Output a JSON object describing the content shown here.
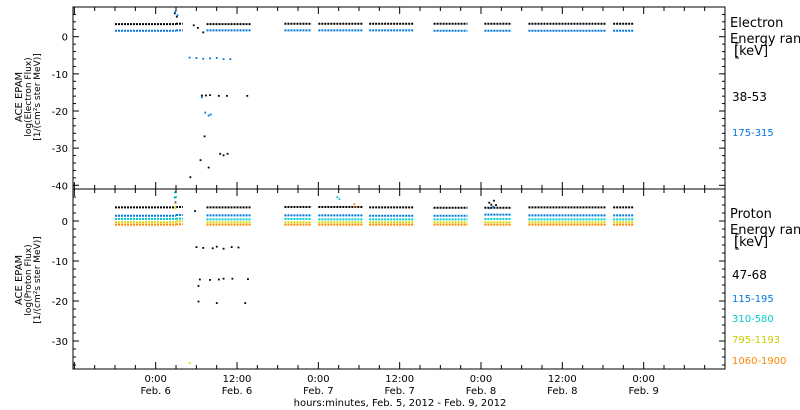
{
  "chart_data": [
    {
      "type": "scatter",
      "panel": "electron",
      "ylabel": [
        "ACE EPAM",
        "log(Electron Flux)",
        "[1/(cm²s ster MeV)]"
      ],
      "ylim": [
        -41,
        8
      ],
      "yticks": [
        0,
        -10,
        -20,
        -30,
        -40
      ],
      "legend_title": [
        "Electron",
        "Energy ranges",
        "[keV]"
      ],
      "series": [
        {
          "name": "38-53",
          "color": "#000000",
          "segments": [
            [
              -6.0,
              3.0,
              3.4
            ],
            [
              3.0,
              4.0,
              3.5
            ],
            [
              7.5,
              14.0,
              3.4
            ],
            [
              19.0,
              23.0,
              3.5
            ],
            [
              24.0,
              30.5,
              3.5
            ],
            [
              31.5,
              38.0,
              3.5
            ],
            [
              41.0,
              46.0,
              3.5
            ],
            [
              48.5,
              52.5,
              3.5
            ],
            [
              55.0,
              66.5,
              3.5
            ],
            [
              67.5,
              70.5,
              3.5
            ]
          ],
          "points": [
            [
              2.8,
              6.3
            ],
            [
              3.1,
              5.4
            ],
            [
              5.6,
              3.1
            ],
            [
              6.2,
              2.4
            ],
            [
              7.0,
              1.2
            ],
            [
              6.8,
              -15.8
            ],
            [
              7.4,
              -15.8
            ],
            [
              8.0,
              -15.7
            ],
            [
              9.3,
              -15.9
            ],
            [
              10.5,
              -15.9
            ],
            [
              13.5,
              -15.9
            ],
            [
              7.2,
              -26.8
            ],
            [
              6.6,
              -33.2
            ],
            [
              7.8,
              -35.2
            ],
            [
              5.1,
              -37.8
            ],
            [
              9.5,
              -31.5
            ],
            [
              10.0,
              -31.9
            ],
            [
              10.6,
              -31.5
            ]
          ]
        },
        {
          "name": "175-315",
          "color": "#0077dd",
          "segments": [
            [
              -6.0,
              3.0,
              1.6
            ],
            [
              3.0,
              4.0,
              1.7
            ],
            [
              7.5,
              14.0,
              1.7
            ],
            [
              19.0,
              23.0,
              1.7
            ],
            [
              24.0,
              30.5,
              1.7
            ],
            [
              31.5,
              38.0,
              1.7
            ],
            [
              41.0,
              46.0,
              1.6
            ],
            [
              48.5,
              52.5,
              1.6
            ],
            [
              55.0,
              66.5,
              1.6
            ],
            [
              67.5,
              70.5,
              1.6
            ]
          ],
          "points": [
            [
              2.9,
              6.8
            ],
            [
              3.2,
              5.8
            ],
            [
              5.0,
              -5.6
            ],
            [
              6.0,
              -5.7
            ],
            [
              7.0,
              -5.9
            ],
            [
              8.0,
              -5.8
            ],
            [
              9.0,
              -5.7
            ],
            [
              10.0,
              -6.0
            ],
            [
              11.0,
              -6.0
            ],
            [
              7.3,
              -20.4
            ],
            [
              7.8,
              -21.2
            ],
            [
              8.1,
              -20.9
            ],
            [
              6.8,
              -16.3
            ]
          ]
        }
      ]
    },
    {
      "type": "scatter",
      "panel": "proton",
      "ylabel": [
        "ACE EPAM",
        "log(Proton Flux)",
        "[1/(cm²s ster MeV)]"
      ],
      "ylim": [
        -37,
        8
      ],
      "yticks": [
        0,
        -10,
        -20,
        -30
      ],
      "legend_title": [
        "Proton",
        "Energy ranges",
        "[keV]"
      ],
      "series": [
        {
          "name": "47-68",
          "color": "#000000",
          "segments": [
            [
              -6.0,
              3.0,
              3.4
            ],
            [
              3.0,
              4.0,
              3.5
            ],
            [
              7.5,
              14.0,
              3.4
            ],
            [
              19.0,
              23.0,
              3.5
            ],
            [
              24.0,
              30.5,
              3.5
            ],
            [
              31.5,
              38.0,
              3.4
            ],
            [
              41.0,
              46.0,
              3.3
            ],
            [
              48.5,
              52.5,
              3.3
            ],
            [
              55.0,
              66.5,
              3.4
            ],
            [
              67.5,
              70.5,
              3.4
            ]
          ],
          "points": [
            [
              6.0,
              -6.5
            ],
            [
              7.0,
              -6.7
            ],
            [
              8.4,
              -6.8
            ],
            [
              9.0,
              -6.4
            ],
            [
              10.0,
              -6.9
            ],
            [
              11.2,
              -6.5
            ],
            [
              12.2,
              -6.6
            ],
            [
              6.5,
              -14.6
            ],
            [
              8.0,
              -14.7
            ],
            [
              9.3,
              -14.6
            ],
            [
              10.0,
              -14.4
            ],
            [
              11.3,
              -14.4
            ],
            [
              13.6,
              -14.5
            ],
            [
              6.3,
              -16.2
            ],
            [
              6.3,
              -20.1
            ],
            [
              9.0,
              -20.5
            ],
            [
              13.2,
              -20.5
            ],
            [
              5.8,
              2.5
            ],
            [
              49.2,
              4.6
            ],
            [
              49.5,
              4.1
            ],
            [
              49.9,
              5.1
            ],
            [
              50.2,
              4.0
            ]
          ]
        },
        {
          "name": "115-195",
          "color": "#0077dd",
          "segments": [
            [
              -6.0,
              3.0,
              1.3
            ],
            [
              3.0,
              4.0,
              1.5
            ],
            [
              7.5,
              14.0,
              1.4
            ],
            [
              19.0,
              23.0,
              1.4
            ],
            [
              24.0,
              30.5,
              1.4
            ],
            [
              31.5,
              38.0,
              1.3
            ],
            [
              41.0,
              46.0,
              1.3
            ],
            [
              48.5,
              52.5,
              1.6
            ],
            [
              55.0,
              66.5,
              1.4
            ],
            [
              67.5,
              70.5,
              1.4
            ]
          ],
          "points": [
            [
              2.8,
              5.9
            ],
            [
              2.9,
              4.8
            ],
            [
              49.3,
              3.2
            ],
            [
              49.8,
              3.6
            ]
          ]
        },
        {
          "name": "310-580",
          "color": "#00cccc",
          "segments": [
            [
              -6.0,
              3.0,
              0.5
            ],
            [
              3.0,
              4.0,
              0.6
            ],
            [
              7.5,
              14.0,
              0.4
            ],
            [
              19.0,
              23.0,
              0.5
            ],
            [
              24.0,
              30.5,
              0.4
            ],
            [
              31.5,
              38.0,
              0.4
            ],
            [
              41.0,
              46.0,
              0.4
            ],
            [
              48.5,
              52.5,
              0.5
            ],
            [
              55.0,
              66.5,
              0.4
            ],
            [
              67.5,
              70.5,
              0.4
            ]
          ],
          "points": [
            [
              2.8,
              7.2
            ],
            [
              3.0,
              6.0
            ],
            [
              26.8,
              6.0
            ],
            [
              27.1,
              5.5
            ]
          ]
        },
        {
          "name": "795-1193",
          "color": "#dddd00",
          "segments": [
            [
              -6.0,
              3.0,
              -0.3
            ],
            [
              3.0,
              4.0,
              -0.1
            ],
            [
              7.5,
              14.0,
              -0.3
            ],
            [
              19.0,
              23.0,
              -0.3
            ],
            [
              24.0,
              30.5,
              -0.3
            ],
            [
              31.5,
              38.0,
              -0.3
            ],
            [
              41.0,
              46.0,
              -0.3
            ],
            [
              48.5,
              52.5,
              -0.3
            ],
            [
              55.0,
              66.5,
              -0.3
            ],
            [
              67.5,
              70.5,
              -0.3
            ]
          ],
          "points": [
            [
              2.9,
              3.1
            ],
            [
              2.9,
              3.5
            ],
            [
              5.0,
              -35.5
            ]
          ]
        },
        {
          "name": "1060-1900",
          "color": "#ff8800",
          "segments": [
            [
              -6.0,
              3.0,
              -0.9
            ],
            [
              3.0,
              4.0,
              -0.8
            ],
            [
              7.5,
              14.0,
              -0.9
            ],
            [
              19.0,
              23.0,
              -0.9
            ],
            [
              24.0,
              30.5,
              -0.9
            ],
            [
              31.5,
              38.0,
              -0.9
            ],
            [
              41.0,
              46.0,
              -0.9
            ],
            [
              48.5,
              52.5,
              -0.9
            ],
            [
              55.0,
              66.5,
              -0.9
            ],
            [
              67.5,
              70.5,
              -0.9
            ]
          ],
          "points": [
            [
              2.9,
              4.5
            ],
            [
              29.3,
              4.2
            ],
            [
              29.6,
              3.5
            ]
          ]
        }
      ]
    }
  ],
  "x_axis": {
    "range_hours": [
      -12.2,
      84.0
    ],
    "ticks": [
      {
        "h": 0,
        "time": "0:00",
        "date": "Feb. 6"
      },
      {
        "h": 12,
        "time": "12:00",
        "date": "Feb. 6"
      },
      {
        "h": 24,
        "time": "0:00",
        "date": "Feb. 7"
      },
      {
        "h": 36,
        "time": "12:00",
        "date": "Feb. 7"
      },
      {
        "h": 48,
        "time": "0:00",
        "date": "Feb. 8"
      },
      {
        "h": 60,
        "time": "12:00",
        "date": "Feb. 8"
      },
      {
        "h": 72,
        "time": "0:00",
        "date": "Feb. 9"
      }
    ],
    "minor_step_hours": 3,
    "xlabel": "hours:minutes, Feb.  5, 2012 - Feb.  9, 2012"
  }
}
